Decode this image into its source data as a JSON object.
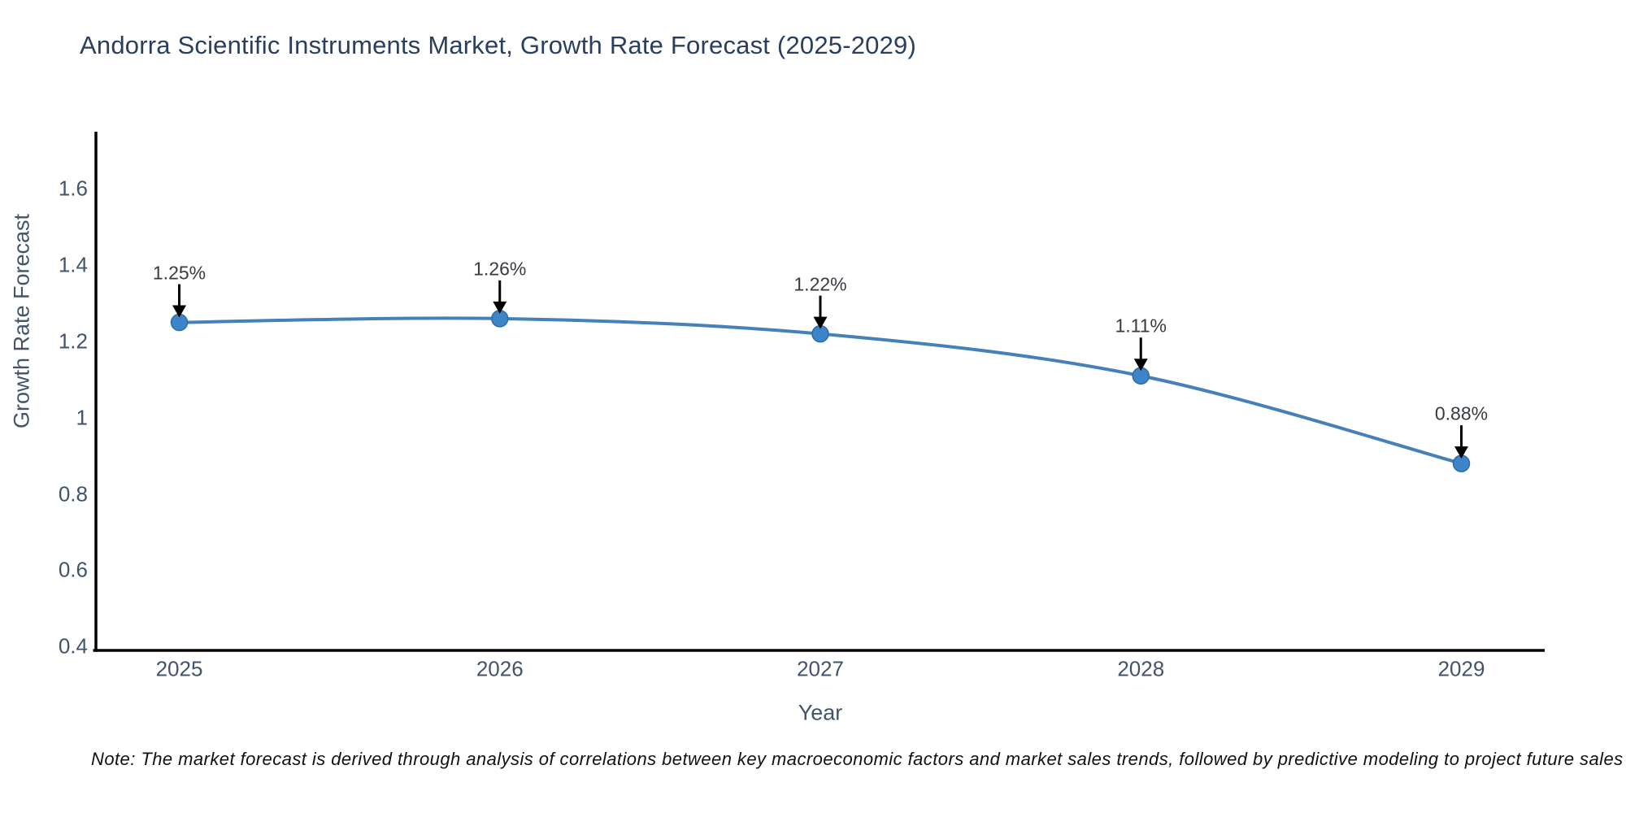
{
  "chart_data": {
    "type": "line",
    "title": "Andorra Scientific Instruments Market, Growth Rate Forecast (2025-2029)",
    "xlabel": "Year",
    "ylabel": "Growth Rate Forecast",
    "x": [
      2025,
      2026,
      2027,
      2028,
      2029
    ],
    "y": [
      1.25,
      1.26,
      1.22,
      1.11,
      0.88
    ],
    "point_labels": [
      "1.25%",
      "1.26%",
      "1.22%",
      "1.11%",
      "0.88%"
    ],
    "xtick_labels": [
      "2025",
      "2026",
      "2027",
      "2028",
      "2029"
    ],
    "yticks": [
      0.4,
      0.6,
      0.8,
      1,
      1.2,
      1.4,
      1.6
    ],
    "ytick_labels": [
      "0.4",
      "0.6",
      "0.8",
      "1",
      "1.2",
      "1.4",
      "1.6"
    ],
    "xlim": [
      2024.74,
      2029.26
    ],
    "ylim": [
      0.39,
      1.75
    ],
    "grid": false,
    "legend": "none",
    "line_shape": "spline",
    "colors": {
      "line": "#4580b9",
      "marker": "#3d84c8",
      "marker_edge": "#2e6da4",
      "axis": "#000000",
      "title_text": "#2a3f5f",
      "tick_text": "#42546a",
      "annotation_text": "#353b41",
      "arrow": "#000000",
      "note_text": "#111111"
    }
  },
  "note": "Note: The market forecast is derived through analysis of correlations between key macroeconomic factors and market sales trends, followed by predictive modeling to project future sales"
}
